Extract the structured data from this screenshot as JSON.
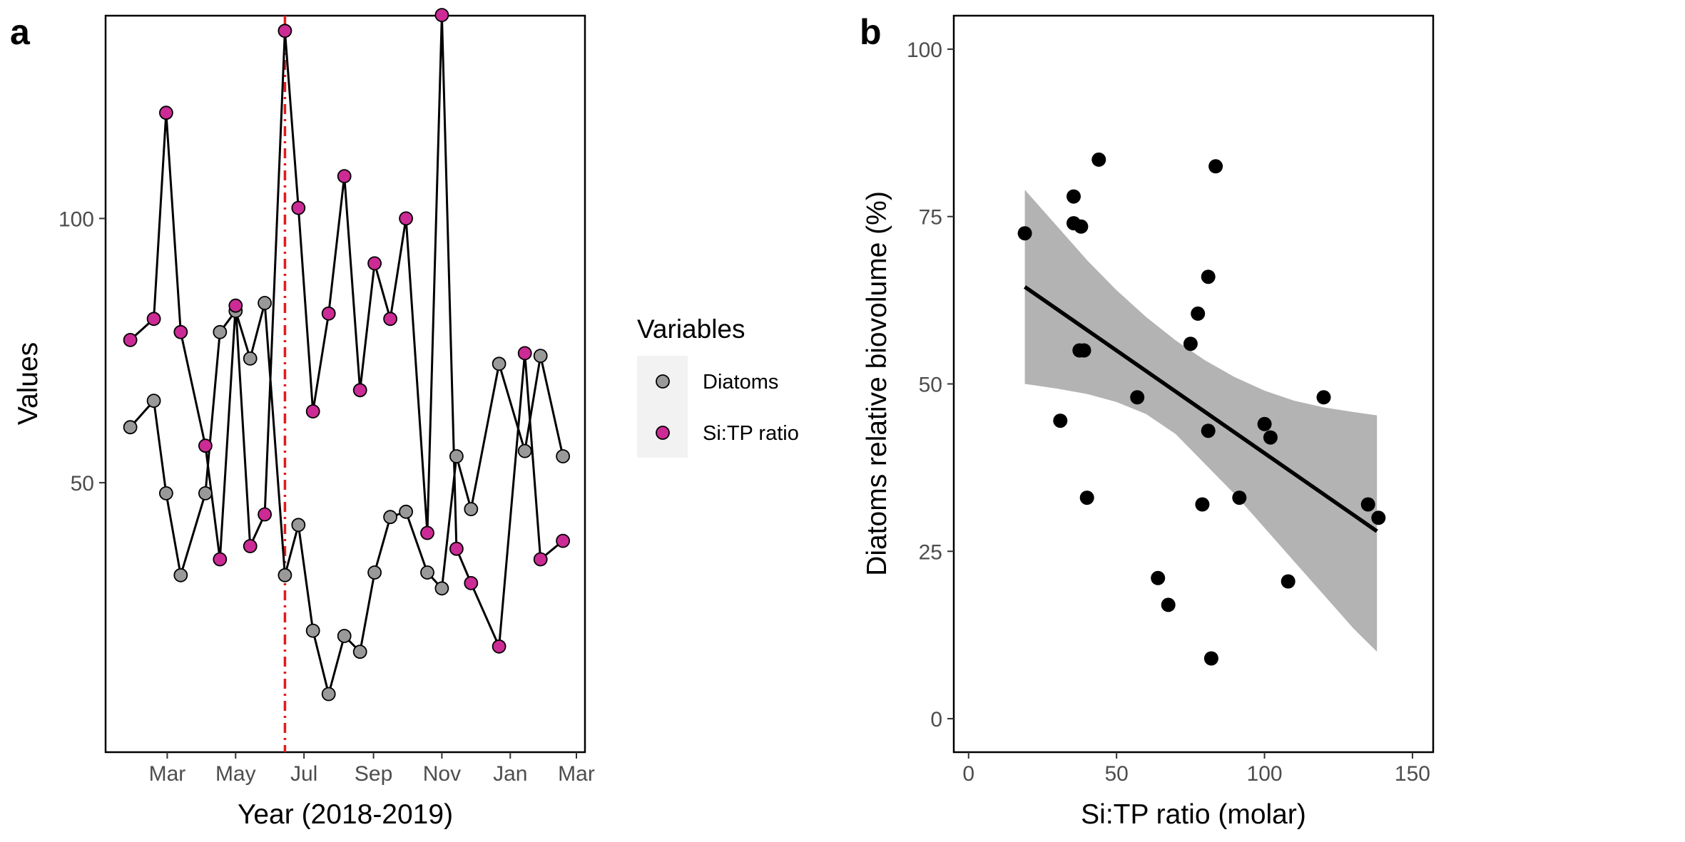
{
  "chart_data": [
    {
      "panel": "a",
      "type": "line",
      "xlabel": "Year (2018-2019)",
      "ylabel": "Values",
      "x_ticks": [
        "Mar",
        "May",
        "Jul",
        "Sep",
        "Nov",
        "Jan",
        "Mar"
      ],
      "x_tick_dates": [
        "2018-03-01",
        "2018-05-01",
        "2018-07-01",
        "2018-09-01",
        "2018-11-01",
        "2019-01-01",
        "2019-03-01"
      ],
      "y_ticks": [
        50,
        100
      ],
      "ylim": [
        4,
        135
      ],
      "xlim": [
        "2018-01-19",
        "2019-03-01"
      ],
      "vline": {
        "date": "2018-06-14",
        "color": "#e41a1c",
        "style": "dotdash"
      },
      "series": [
        {
          "name": "Diatoms",
          "color": "#999999",
          "points": [
            [
              "2018-01-27",
              60.5
            ],
            [
              "2018-02-17",
              65.5
            ],
            [
              "2018-02-28",
              48.0
            ],
            [
              "2018-03-13",
              32.5
            ],
            [
              "2018-04-04",
              48.0
            ],
            [
              "2018-04-17",
              78.5
            ],
            [
              "2018-05-01",
              82.5
            ],
            [
              "2018-05-14",
              73.5
            ],
            [
              "2018-05-27",
              84.0
            ],
            [
              "2018-06-14",
              32.5
            ],
            [
              "2018-06-26",
              42.0
            ],
            [
              "2018-07-09",
              22.0
            ],
            [
              "2018-07-23",
              10.0
            ],
            [
              "2018-08-06",
              21.0
            ],
            [
              "2018-08-20",
              18.0
            ],
            [
              "2018-09-02",
              33.0
            ],
            [
              "2018-09-16",
              43.5
            ],
            [
              "2018-09-30",
              44.5
            ],
            [
              "2018-10-19",
              33.0
            ],
            [
              "2018-11-01",
              30.0
            ],
            [
              "2018-11-14",
              55.0
            ],
            [
              "2018-11-27",
              45.0
            ],
            [
              "2018-12-22",
              72.5
            ],
            [
              "2019-01-14",
              56.0
            ],
            [
              "2019-01-28",
              74.0
            ],
            [
              "2019-02-17",
              55.0
            ]
          ]
        },
        {
          "name": "Si:TP ratio",
          "color": "#cc2a95",
          "points": [
            [
              "2018-01-27",
              77.0
            ],
            [
              "2018-02-17",
              81.0
            ],
            [
              "2018-02-28",
              120.0
            ],
            [
              "2018-03-13",
              78.5
            ],
            [
              "2018-04-04",
              57.0
            ],
            [
              "2018-04-17",
              35.5
            ],
            [
              "2018-05-01",
              83.5
            ],
            [
              "2018-05-14",
              38.0
            ],
            [
              "2018-05-27",
              44.0
            ],
            [
              "2018-06-14",
              135.5
            ],
            [
              "2018-06-26",
              102.0
            ],
            [
              "2018-07-09",
              63.5
            ],
            [
              "2018-07-23",
              82.0
            ],
            [
              "2018-08-06",
              108.0
            ],
            [
              "2018-08-20",
              67.5
            ],
            [
              "2018-09-02",
              91.5
            ],
            [
              "2018-09-16",
              81.0
            ],
            [
              "2018-09-30",
              100.0
            ],
            [
              "2018-10-19",
              40.5
            ],
            [
              "2018-11-01",
              138.5
            ],
            [
              "2018-11-14",
              37.5
            ],
            [
              "2018-11-27",
              31.0
            ],
            [
              "2018-12-22",
              19.0
            ],
            [
              "2019-01-14",
              74.5
            ],
            [
              "2019-01-28",
              35.5
            ],
            [
              "2019-02-17",
              39.0
            ]
          ]
        }
      ],
      "legend": {
        "title": "Variables",
        "placement": "right",
        "entries": [
          "Diatoms",
          "Si:TP ratio"
        ]
      }
    },
    {
      "panel": "b",
      "type": "scatter",
      "xlabel": "Si:TP ratio (molar)",
      "ylabel": "Diatoms relative biovolume (%)",
      "x_ticks": [
        0,
        50,
        100,
        150
      ],
      "y_ticks": [
        0,
        25,
        50,
        75,
        100
      ],
      "xlim": [
        -5,
        157
      ],
      "ylim": [
        -5,
        105
      ],
      "points": [
        [
          19,
          72.5
        ],
        [
          31,
          44.5
        ],
        [
          35.5,
          78
        ],
        [
          35.5,
          74
        ],
        [
          37.5,
          55
        ],
        [
          38,
          73.5
        ],
        [
          39,
          55
        ],
        [
          40,
          33
        ],
        [
          44,
          83.5
        ],
        [
          57,
          48
        ],
        [
          64,
          21
        ],
        [
          67.5,
          17
        ],
        [
          75,
          56
        ],
        [
          77.5,
          60.5
        ],
        [
          79,
          32
        ],
        [
          81,
          66
        ],
        [
          81,
          43
        ],
        [
          82,
          9
        ],
        [
          83.5,
          82.5
        ],
        [
          91.5,
          33
        ],
        [
          100,
          44
        ],
        [
          102,
          42
        ],
        [
          108,
          20.5
        ],
        [
          120,
          48
        ],
        [
          135,
          32
        ],
        [
          138.5,
          30
        ]
      ],
      "fit": {
        "x": [
          19,
          138
        ],
        "y": [
          64.5,
          28
        ]
      },
      "ci_band": {
        "x": [
          19,
          30,
          40,
          50,
          60,
          70,
          80,
          90,
          100,
          110,
          120,
          130,
          138
        ],
        "upper": [
          79,
          73.5,
          68.5,
          64,
          60,
          56.5,
          53.5,
          51,
          49,
          47.5,
          46.5,
          45.8,
          45.3
        ],
        "lower": [
          50,
          49.3,
          48.5,
          47.3,
          45.5,
          42.5,
          38,
          33.5,
          28.5,
          23.5,
          18.5,
          13.5,
          10
        ]
      }
    }
  ]
}
